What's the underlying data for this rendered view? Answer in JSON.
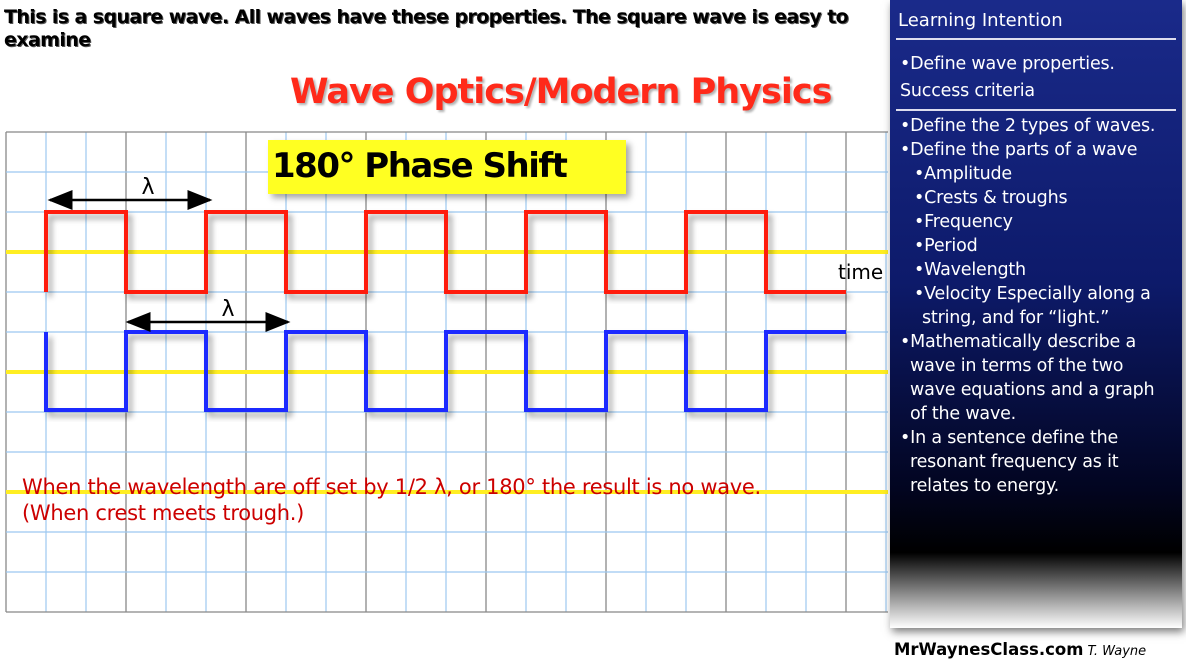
{
  "caption": "This is a square wave. All waves have these properties. The square wave is easy to examine",
  "title": "Wave Optics/Modern Physics",
  "phase_label": "180° Phase Shift",
  "wavelength_symbol": "λ",
  "time_label": "time",
  "note": "When the wavelength are off set by 1/2 λ, or 180° the result is no wave. (When crest meets trough.)",
  "colors": {
    "wave1": "#ff1a0a",
    "wave2": "#1a2aff",
    "axis": "#ffee22",
    "result": "#8e2a8e",
    "panel": "#0d1a6a"
  },
  "panel": {
    "heading": "Learning Intention",
    "intro": "•Define wave properties.",
    "subheading": "Success criteria",
    "items": [
      "•Define the 2 types of waves.",
      "•Define the parts of a wave",
      "•Amplitude",
      "•Crests & troughs",
      "•Frequency",
      "•Period",
      "•Wavelength",
      "•Velocity Especially along a",
      "string, and for “light.”",
      "•Mathematically describe a",
      "wave in terms of the two",
      "wave equations and a graph",
      "of the wave.",
      "•In a sentence define the",
      "resonant frequency as it",
      "relates to energy."
    ]
  },
  "footer": {
    "site": "MrWaynesClass.com",
    "author": "T. Wayne"
  }
}
